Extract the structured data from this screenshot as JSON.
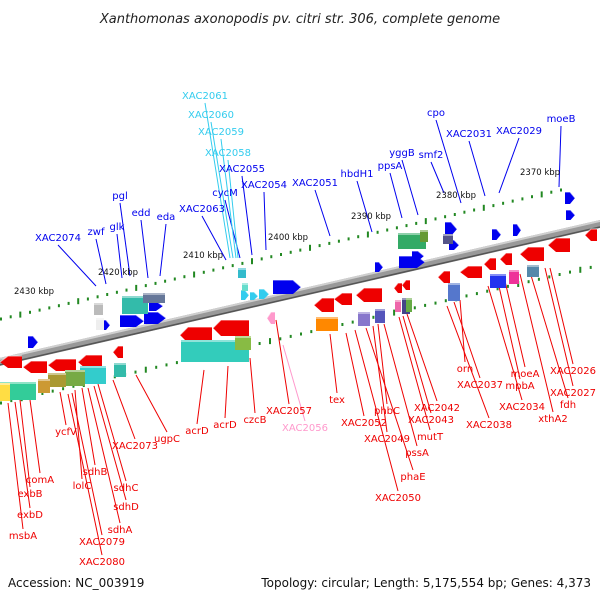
{
  "title": "Xanthomonas axonopodis pv. citri str. 306, complete genome",
  "accession": "Accession: NC_003919",
  "topology": "Topology: circular; Length: 5,175,554 bp; Genes: 4,373",
  "scale_labels": [
    "2370 kbp",
    "2380 kbp",
    "2390 kbp",
    "2400 kbp",
    "2410 kbp",
    "2420 kbp",
    "2430 kbp"
  ],
  "colors": {
    "forward_gene": "#0000ee",
    "reverse_gene": "#ee0000",
    "highlight_gene": "#33ccee",
    "highlight_reverse": "#ff99cc",
    "backbone": "#888888",
    "tick": "#228822"
  },
  "top_labels": [
    "moeB",
    "cpo",
    "XAC2029",
    "XAC2031",
    "smf2",
    "yggB",
    "ppsA",
    "hbdH1",
    "XAC2051",
    "XAC2054",
    "XAC2055",
    "cycM",
    "XAC2058",
    "XAC2059",
    "XAC2060",
    "XAC2061",
    "XAC2063",
    "eda",
    "edd",
    "pgl",
    "glk",
    "zwf",
    "XAC2074"
  ],
  "bottom_labels": [
    "XAC2026",
    "XAC2027",
    "fdh",
    "xthA2",
    "moeA",
    "mpbA",
    "XAC2034",
    "orn",
    "XAC2037",
    "XAC2038",
    "XAC2042",
    "XAC2043",
    "mutT",
    "phbC",
    "XAC2049",
    "pssA",
    "phaE",
    "XAC2050",
    "XAC2052",
    "tex",
    "XAC2057",
    "XAC2056",
    "czcB",
    "acrD",
    "acrD",
    "ugpC",
    "XAC2073",
    "sdhC",
    "sdhD",
    "sdhB",
    "sdhA",
    "lolC",
    "ycfV",
    "XAC2079",
    "XAC2080",
    "comA",
    "exbB",
    "exbD",
    "msbA"
  ]
}
